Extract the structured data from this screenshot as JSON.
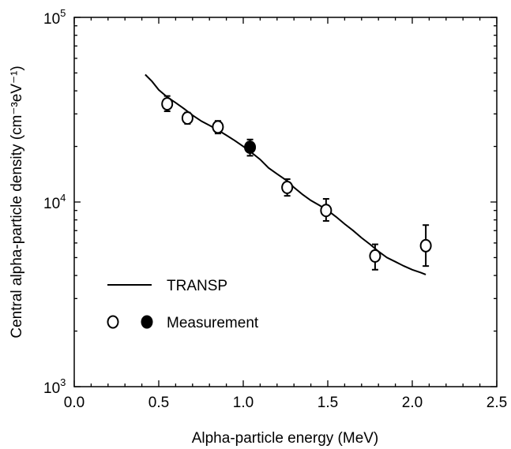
{
  "chart_data": {
    "type": "scatter",
    "xlabel": "Alpha-particle energy (MeV)",
    "ylabel": "Central alpha-particle density (cm⁻³eV⁻¹)",
    "xlim": [
      0.0,
      2.5
    ],
    "ylim": [
      1000,
      100000
    ],
    "yscale": "log",
    "x_ticks": [
      "0.0",
      "0.5",
      "1.0",
      "1.5",
      "2.0",
      "2.5"
    ],
    "x_tick_values": [
      0.0,
      0.5,
      1.0,
      1.5,
      2.0,
      2.5
    ],
    "y_ticks": [
      {
        "value": 1000,
        "base": "10",
        "exp": "3"
      },
      {
        "value": 10000,
        "base": "10",
        "exp": "4"
      },
      {
        "value": 100000,
        "base": "10",
        "exp": "5"
      }
    ],
    "legend_position": "lower-left",
    "grid": false,
    "series": [
      {
        "name": "TRANSP",
        "style": "line",
        "color": "#000000",
        "x": [
          0.42,
          0.46,
          0.5,
          0.55,
          0.6,
          0.65,
          0.7,
          0.75,
          0.8,
          0.85,
          0.9,
          0.95,
          1.0,
          1.05,
          1.1,
          1.15,
          1.2,
          1.25,
          1.3,
          1.35,
          1.4,
          1.45,
          1.5,
          1.55,
          1.6,
          1.65,
          1.7,
          1.75,
          1.8,
          1.85,
          1.9,
          1.95,
          2.0,
          2.05,
          2.08
        ],
        "y": [
          49000,
          45000,
          40500,
          37000,
          34500,
          32000,
          29500,
          27500,
          26000,
          24500,
          23000,
          21500,
          20000,
          18500,
          17000,
          15300,
          14200,
          13200,
          12000,
          11000,
          10200,
          9600,
          9000,
          8300,
          7600,
          7000,
          6400,
          5900,
          5400,
          5000,
          4750,
          4500,
          4300,
          4150,
          4050
        ]
      },
      {
        "name": "Measurement",
        "style": "points",
        "points": [
          {
            "x": 0.55,
            "y": 34000,
            "err_lo": 31000,
            "err_hi": 37500,
            "filled": false
          },
          {
            "x": 0.67,
            "y": 28500,
            "err_lo": 26500,
            "err_hi": 30500,
            "filled": false
          },
          {
            "x": 0.85,
            "y": 25500,
            "err_lo": 23500,
            "err_hi": 27500,
            "filled": false
          },
          {
            "x": 1.04,
            "y": 19800,
            "err_lo": 17800,
            "err_hi": 21800,
            "filled": true
          },
          {
            "x": 1.26,
            "y": 12000,
            "err_lo": 10800,
            "err_hi": 13300,
            "filled": false
          },
          {
            "x": 1.49,
            "y": 9000,
            "err_lo": 7900,
            "err_hi": 10400,
            "filled": false
          },
          {
            "x": 1.78,
            "y": 5100,
            "err_lo": 4300,
            "err_hi": 5900,
            "filled": false
          },
          {
            "x": 2.08,
            "y": 5800,
            "err_lo": 4500,
            "err_hi": 7500,
            "filled": false
          }
        ]
      }
    ],
    "legend": {
      "line_label": "TRANSP",
      "marker_label": "Measurement"
    }
  }
}
